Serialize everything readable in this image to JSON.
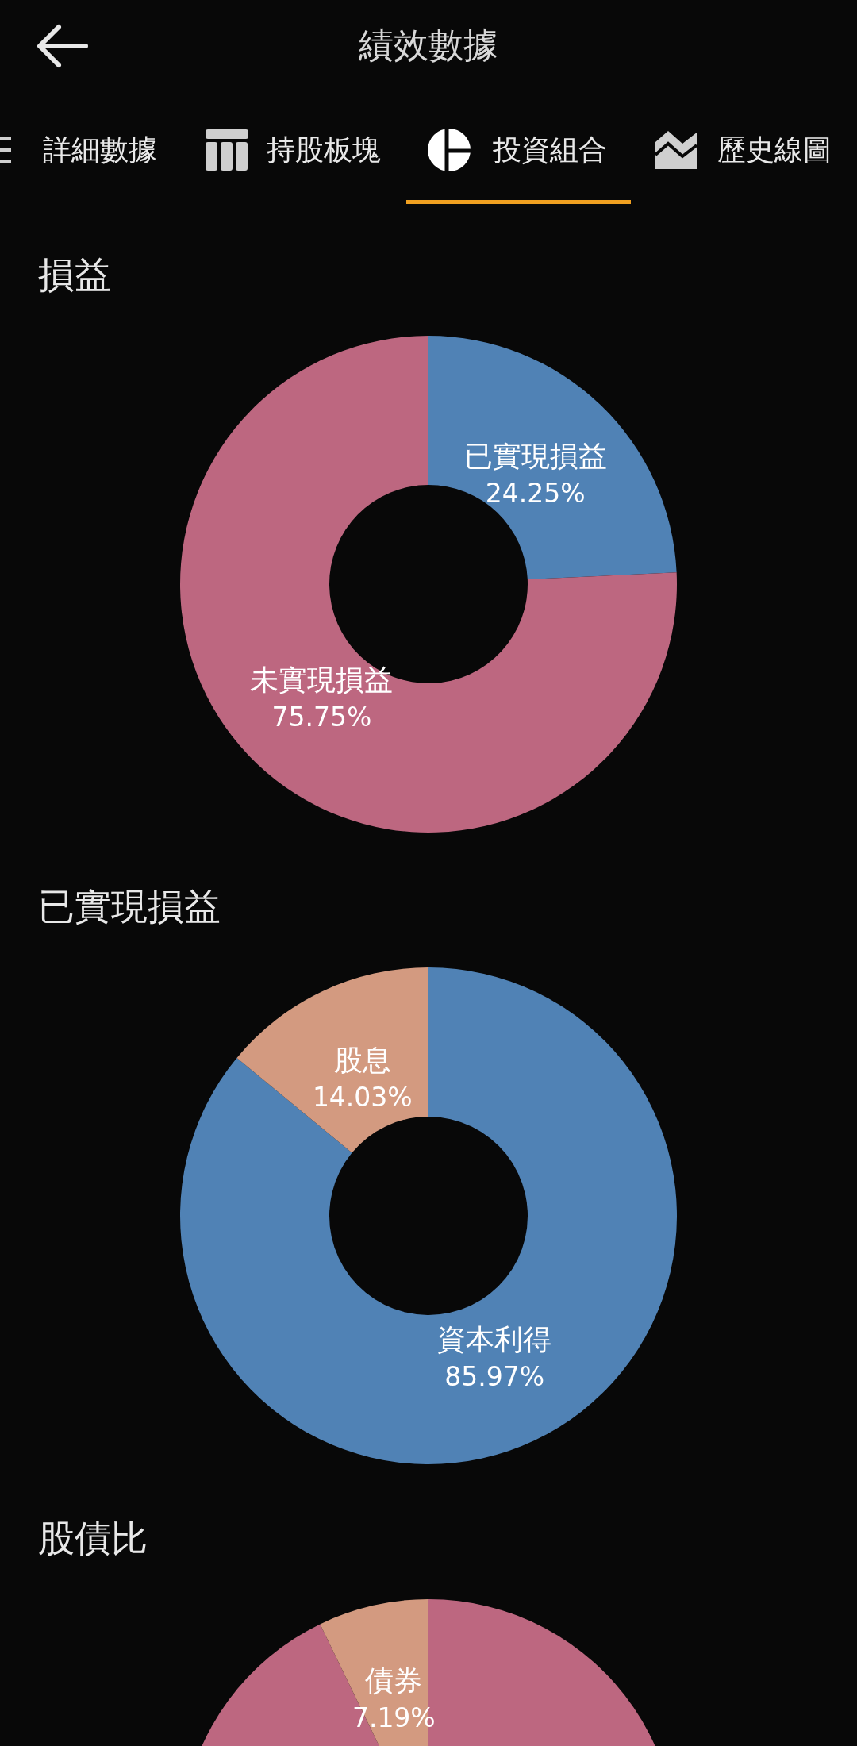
{
  "chart_data": [
    {
      "type": "other",
      "title": "績效數據",
      "annotations": [
        "詳細數據",
        "持股板塊",
        "投資組合",
        "歷史線圖"
      ]
    },
    {
      "type": "donut",
      "title": "損益",
      "categories": [
        "已實現損益",
        "未實現損益"
      ],
      "values": [
        24.25,
        75.75
      ],
      "value_labels": [
        "24.25%",
        "75.75%"
      ],
      "colors": [
        "#5082b5",
        "#bd6780"
      ]
    },
    {
      "type": "donut",
      "title": "已實現損益",
      "categories": [
        "資本利得",
        "股息"
      ],
      "values": [
        85.97,
        14.03
      ],
      "value_labels": [
        "85.97%",
        "14.03%"
      ],
      "colors": [
        "#5082b5",
        "#d39a80"
      ]
    },
    {
      "type": "donut",
      "title": "股債比",
      "categories": [
        null,
        "債券"
      ],
      "values": [
        92.81,
        7.19
      ],
      "value_labels": [
        null,
        "7.19%"
      ],
      "colors": [
        "#bd6780",
        "#d39a80"
      ]
    }
  ]
}
